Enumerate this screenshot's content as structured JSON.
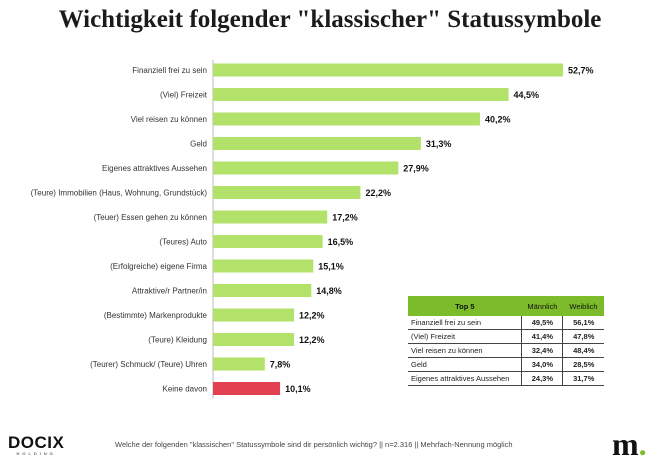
{
  "chart_data": {
    "type": "bar",
    "orientation": "horizontal",
    "title": "Wichtigkeit folgender \"klassischer\" Statussymbole",
    "categories": [
      "Finanziell frei zu sein",
      "(Viel) Freizeit",
      "Viel reisen zu können",
      "Geld",
      "Eigenes attraktives Aussehen",
      "(Teure) Immobilien (Haus, Wohnung, Grundstück)",
      "(Teuer) Essen gehen zu können",
      "(Teures) Auto",
      "(Erfolgreiche) eigene Firma",
      "Attraktive/r Partner/in",
      "(Bestimmte) Markenprodukte",
      "(Teure) Kleidung",
      "(Teurer) Schmuck/ (Teure) Uhren",
      "Keine davon"
    ],
    "values": [
      52.7,
      44.5,
      40.2,
      31.3,
      27.9,
      22.2,
      17.2,
      16.5,
      15.1,
      14.8,
      12.2,
      12.2,
      7.8,
      10.1
    ],
    "value_labels": [
      "52,7%",
      "44,5%",
      "40,2%",
      "31,3%",
      "27,9%",
      "22,2%",
      "17,2%",
      "16,5%",
      "15,1%",
      "14,8%",
      "12,2%",
      "12,2%",
      "7,8%",
      "10,1%"
    ],
    "xlim": [
      0,
      60
    ],
    "grid": false,
    "colors": {
      "bar": "#b3e26b",
      "highlight": "#e0404f"
    },
    "highlight_index": 13
  },
  "top5_table": {
    "header": {
      "name": "Top 5",
      "male": "Männlich",
      "female": "Weiblich"
    },
    "rows": [
      {
        "name": "Finanziell frei zu sein",
        "male": "49,5%",
        "female": "56,1%"
      },
      {
        "name": "(Viel) Freizeit",
        "male": "41,4%",
        "female": "47,8%"
      },
      {
        "name": "Viel reisen zu können",
        "male": "32,4%",
        "female": "48,4%"
      },
      {
        "name": "Geld",
        "male": "34,0%",
        "female": "28,5%"
      },
      {
        "name": "Eigenes attraktives Aussehen",
        "male": "24,3%",
        "female": "31,7%"
      }
    ]
  },
  "footer": {
    "note": "Welche der folgenden \"klassischen\" Statussymbole sind dir persönlich wichtig? || n=2.316 || Mehrfach-Nennung möglich",
    "logo_left": "DOCIX",
    "logo_left_sub": "HOLDING",
    "logo_right": "m",
    "logo_right_dot": "."
  }
}
